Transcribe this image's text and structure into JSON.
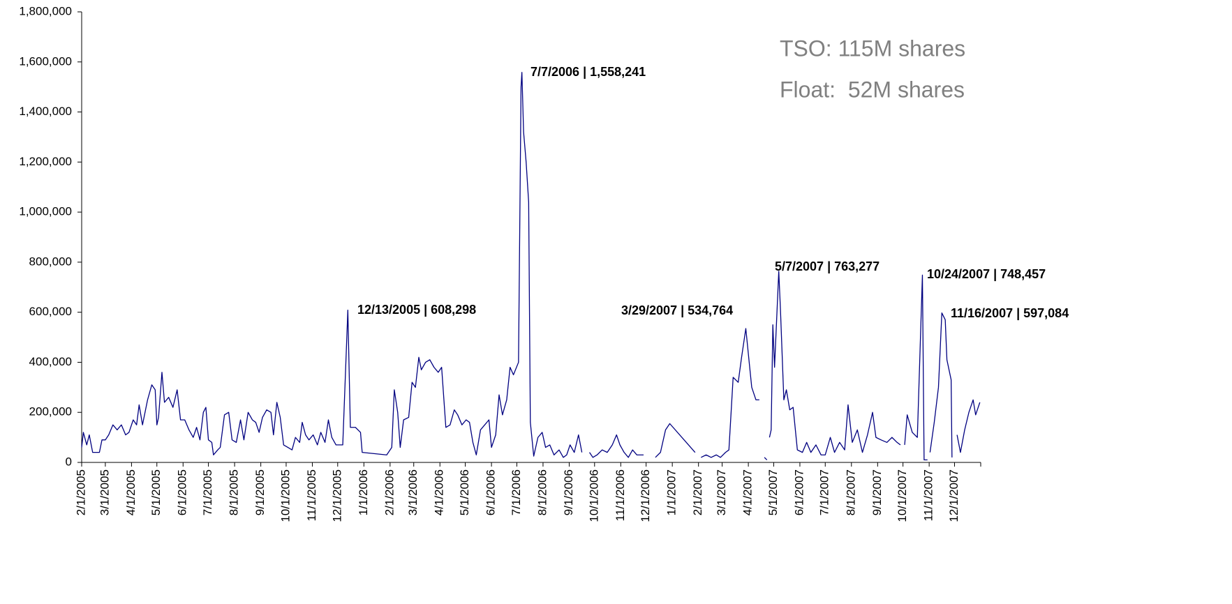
{
  "chart_data": {
    "type": "line",
    "color": "#000080",
    "xlim": [
      "2/1/2005",
      "1/1/2008"
    ],
    "xticks": [
      "2/1/2005",
      "3/1/2005",
      "4/1/2005",
      "5/1/2005",
      "6/1/2005",
      "7/1/2005",
      "8/1/2005",
      "9/1/2005",
      "10/1/2005",
      "11/1/2005",
      "12/1/2005",
      "1/1/2006",
      "2/1/2006",
      "3/1/2006",
      "4/1/2006",
      "5/1/2006",
      "6/1/2006",
      "7/1/2006",
      "8/1/2006",
      "9/1/2006",
      "10/1/2006",
      "11/1/2006",
      "12/1/2006",
      "1/1/2007",
      "2/1/2007",
      "3/1/2007",
      "4/1/2007",
      "5/1/2007",
      "6/1/2007",
      "7/1/2007",
      "8/1/2007",
      "9/1/2007",
      "10/1/2007",
      "11/1/2007",
      "12/1/2007"
    ],
    "ylim": [
      0,
      1800000
    ],
    "yticks": [
      0,
      {
        "value": 200000,
        "label": "200,000"
      },
      {
        "value": 400000,
        "label": "400,000"
      },
      {
        "value": 600000,
        "label": "600,000"
      },
      {
        "value": 800000,
        "label": "800,000"
      },
      {
        "value": 1000000,
        "label": "1,000,000"
      },
      {
        "value": 1200000,
        "label": "1,200,000"
      },
      {
        "value": 1400000,
        "label": "1,400,000"
      },
      {
        "value": 1600000,
        "label": "1,600,000"
      },
      {
        "value": 1800000,
        "label": "1,800,000"
      }
    ],
    "x": [
      "2/1/2005",
      "2/3/2005",
      "2/7/2005",
      "2/10/2005",
      "2/14/2005",
      "2/22/2005",
      "2/25/2005",
      "3/1/2005",
      "3/5/2005",
      "3/10/2005",
      "3/15/2005",
      "3/20/2005",
      "3/25/2005",
      "3/29/2005",
      "4/3/2005",
      "4/7/2005",
      "4/10/2005",
      "4/14/2005",
      "4/20/2005",
      "4/25/2005",
      "4/29/2005",
      "5/1/2005",
      "5/3/2005",
      "5/7/2005",
      "5/10/2005",
      "5/15/2005",
      "5/20/2005",
      "5/25/2005",
      "5/29/2005",
      "6/3/2005",
      "6/8/2005",
      "6/13/2005",
      "6/17/2005",
      "6/21/2005",
      "6/25/2005",
      "6/28/2005",
      "7/1/2005",
      "7/5/2005",
      "7/7/2005",
      "7/12/2005",
      "7/15/2005",
      "7/20/2005",
      "7/25/2005",
      "7/29/2005",
      "8/3/2005",
      "8/8/2005",
      "8/12/2005",
      "8/17/2005",
      "8/22/2005",
      "8/26/2005",
      "8/30/2005",
      "9/3/2005",
      "9/8/2005",
      "9/13/2005",
      "9/16/2005",
      "9/20/2005",
      "9/24/2005",
      "9/28/2005",
      "10/3/2005",
      "10/8/2005",
      "10/12/2005",
      "10/17/2005",
      "10/20/2005",
      "10/24/2005",
      "10/28/2005",
      "11/2/2005",
      "11/7/2005",
      "11/11/2005",
      "11/16/2005",
      "11/20/2005",
      "11/24/2005",
      "11/29/2005",
      "12/7/2005",
      "12/13/2005",
      "12/16/2005",
      "12/22/2005",
      "12/28/2005",
      "12/30/2005",
      "1/28/2006",
      "2/3/2006",
      "2/6/2006",
      "2/10/2006",
      "2/13/2006",
      "2/17/2006",
      "2/23/2006",
      "2/27/2006",
      "3/3/2006",
      "3/7/2006",
      "3/10/2006",
      "3/15/2006",
      "3/20/2006",
      "3/25/2006",
      "3/30/2006",
      "4/3/2006",
      "4/8/2006",
      "4/13/2006",
      "4/18/2006",
      "4/22/2006",
      "4/27/2006",
      "5/2/2006",
      "5/6/2006",
      "5/10/2006",
      "5/14/2006",
      "5/19/2006",
      "5/24/2006",
      "5/29/2006",
      "6/1/2006",
      "6/6/2006",
      "6/10/2006",
      "6/14/2006",
      "6/19/2006",
      "6/23/2006",
      "6/27/2006",
      "7/3/2006",
      "7/6/2006",
      "7/7/2006",
      "7/9/2006",
      "7/12/2006",
      "7/15/2006",
      "7/17/2006",
      "7/21/2006",
      "7/26/2006",
      "7/31/2006",
      "8/4/2006",
      "8/9/2006",
      "8/14/2006",
      "8/20/2006",
      "8/25/2006",
      "8/29/2006",
      "9/2/2006",
      "9/7/2006",
      "9/12/2006",
      "9/16/2006",
      "9/20/2006",
      "9/25/2006",
      "9/29/2006",
      "10/4/2006",
      "10/10/2006",
      "10/16/2006",
      "10/22/2006",
      "10/27/2006",
      "10/31/2006",
      "11/5/2006",
      "11/10/2006",
      "11/15/2006",
      "11/20/2006",
      "11/28/2006",
      "12/5/2006",
      "12/12/2006",
      "12/18/2006",
      "12/24/2006",
      "12/29/2006",
      "1/28/2007",
      "2/1/2007",
      "2/4/2007",
      "2/10/2007",
      "2/16/2007",
      "2/22/2007",
      "2/27/2007",
      "3/5/2007",
      "3/9/2007",
      "3/14/2007",
      "3/20/2007",
      "3/24/2007",
      "3/29/2007",
      "4/2/2007",
      "4/5/2007",
      "4/10/2007",
      "4/14/2007",
      "4/17/2007",
      "4/20/2007",
      "4/23/2007",
      "4/25/2007",
      "4/26/2007",
      "4/28/2007",
      "4/30/2007",
      "5/2/2007",
      "5/7/2007",
      "5/9/2007",
      "5/13/2007",
      "5/16/2007",
      "5/20/2007",
      "5/24/2007",
      "5/29/2007",
      "6/4/2007",
      "6/9/2007",
      "6/14/2007",
      "6/20/2007",
      "6/26/2007",
      "7/1/2007",
      "7/7/2007",
      "7/12/2007",
      "7/18/2007",
      "7/24/2007",
      "7/28/2007",
      "8/2/2007",
      "8/8/2007",
      "8/14/2007",
      "8/20/2007",
      "8/26/2007",
      "8/30/2007",
      "9/5/2007",
      "9/12/2007",
      "9/18/2007",
      "9/24/2007",
      "9/28/2007",
      "10/1/2007",
      "10/3/2007",
      "10/6/2007",
      "10/12/2007",
      "10/18/2007",
      "10/24/2007",
      "10/26/2007",
      "10/30/2007",
      "11/1/2007",
      "11/2/2007",
      "11/7/2007",
      "11/12/2007",
      "11/16/2007",
      "11/20/2007",
      "11/22/2007",
      "11/27/2007",
      "11/28/2007",
      "12/1/2007",
      "12/4/2007",
      "12/8/2007",
      "12/13/2007",
      "12/18/2007",
      "12/23/2007",
      "12/26/2007",
      "12/31/2007"
    ],
    "values": [
      60000,
      120000,
      70000,
      110000,
      40000,
      40000,
      90000,
      90000,
      110000,
      150000,
      130000,
      150000,
      110000,
      120000,
      170000,
      150000,
      230000,
      150000,
      250000,
      310000,
      290000,
      150000,
      180000,
      360000,
      240000,
      260000,
      220000,
      290000,
      170000,
      170000,
      130000,
      100000,
      140000,
      90000,
      200000,
      220000,
      90000,
      80000,
      30000,
      50000,
      60000,
      190000,
      200000,
      90000,
      80000,
      170000,
      90000,
      200000,
      170000,
      160000,
      120000,
      180000,
      210000,
      200000,
      110000,
      240000,
      180000,
      70000,
      60000,
      50000,
      100000,
      80000,
      160000,
      110000,
      90000,
      110000,
      70000,
      120000,
      80000,
      170000,
      100000,
      70000,
      70000,
      608298,
      140000,
      140000,
      120000,
      40000,
      30000,
      60000,
      290000,
      200000,
      60000,
      170000,
      180000,
      320000,
      300000,
      420000,
      370000,
      400000,
      410000,
      380000,
      360000,
      380000,
      140000,
      150000,
      210000,
      190000,
      150000,
      170000,
      160000,
      80000,
      30000,
      130000,
      150000,
      170000,
      60000,
      110000,
      270000,
      190000,
      250000,
      380000,
      350000,
      400000,
      1500000,
      1558241,
      1320000,
      1200000,
      1040000,
      160000,
      25000,
      100000,
      120000,
      60000,
      70000,
      30000,
      50000,
      20000,
      30000,
      70000,
      40000,
      110000,
      40000,
      null,
      40000,
      20000,
      30000,
      50000,
      40000,
      70000,
      110000,
      70000,
      40000,
      20000,
      50000,
      30000,
      30000,
      null,
      20000,
      40000,
      130000,
      155000,
      40000,
      null,
      20000,
      30000,
      20000,
      30000,
      20000,
      40000,
      50000,
      340000,
      320000,
      420000,
      534764,
      400000,
      300000,
      250000,
      250000,
      null,
      20000,
      10000,
      null,
      100000,
      130000,
      550000,
      380000,
      763277,
      610000,
      250000,
      290000,
      210000,
      220000,
      50000,
      40000,
      80000,
      40000,
      70000,
      30000,
      30000,
      100000,
      40000,
      80000,
      50000,
      230000,
      80000,
      130000,
      40000,
      110000,
      200000,
      100000,
      90000,
      80000,
      100000,
      80000,
      70000,
      null,
      70000,
      190000,
      120000,
      100000,
      748457,
      10000,
      10000,
      null,
      40000,
      160000,
      300000,
      597084,
      570000,
      410000,
      330000,
      20000,
      null,
      110000,
      40000,
      130000,
      200000,
      250000,
      190000,
      240000
    ],
    "annotations": [
      {
        "text": "12/13/2005 | 608,298"
      },
      {
        "text": "7/7/2006 | 1,558,241"
      },
      {
        "text": "3/29/2007 | 534,764"
      },
      {
        "text": "5/7/2007 | 763,277"
      },
      {
        "text": "10/24/2007 | 748,457"
      },
      {
        "text": "11/16/2007 | 597,084"
      },
      {
        "text": "TSO: 115M shares"
      },
      {
        "text": "Float:  52M shares"
      }
    ]
  }
}
